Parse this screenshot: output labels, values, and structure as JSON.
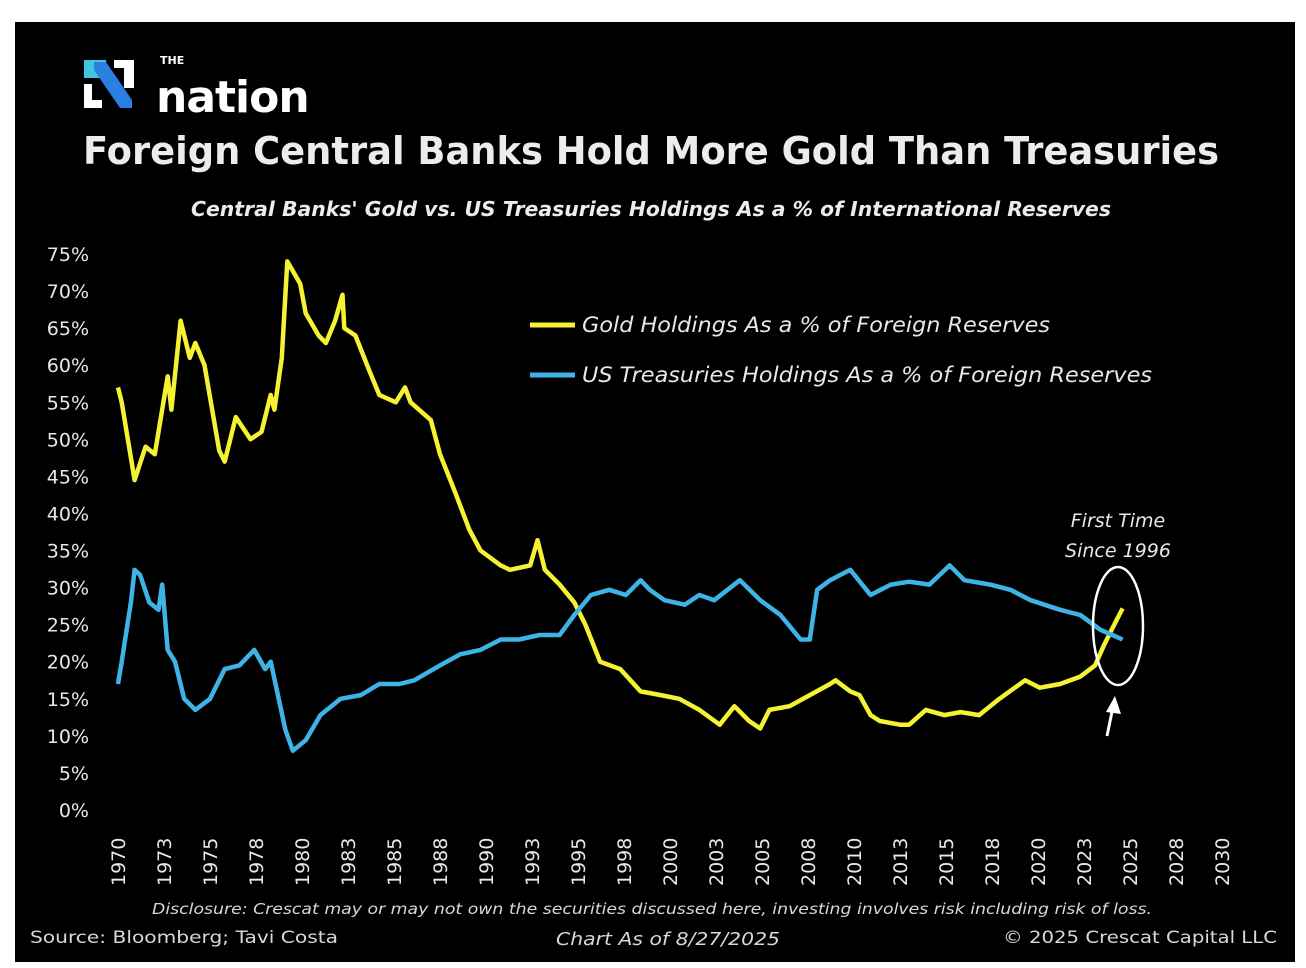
{
  "logo": {
    "small": "THE",
    "word": "nation",
    "colors": {
      "mark_top": "#3ec6e0",
      "mark_bottom": "#2a6fd6"
    }
  },
  "chart_data": {
    "type": "line",
    "title": "Foreign Central Banks Hold More Gold Than Treasuries",
    "subtitle": "Central Banks' Gold vs. US Treasuries Holdings As a % of International Reserves",
    "xlabel": "",
    "ylabel": "",
    "xlim": [
      1970,
      2030
    ],
    "ylim": [
      0,
      75
    ],
    "y_ticks": [
      0,
      5,
      10,
      15,
      20,
      25,
      30,
      35,
      40,
      45,
      50,
      55,
      60,
      65,
      70,
      75
    ],
    "y_tick_labels": [
      "0%",
      "5%",
      "10%",
      "15%",
      "20%",
      "25%",
      "30%",
      "35%",
      "40%",
      "45%",
      "50%",
      "55%",
      "60%",
      "65%",
      "70%",
      "75%"
    ],
    "x_tick_values": [
      1970,
      1972.5,
      1975,
      1977.5,
      1980,
      1982.5,
      1985,
      1987.5,
      1990,
      1992.5,
      1995,
      1997.5,
      2000,
      2002.5,
      2005,
      2007.5,
      2010,
      2012.5,
      2015,
      2017.5,
      2020,
      2022.5,
      2025,
      2027.5,
      2030
    ],
    "x_tick_labels": [
      "1970",
      "1973",
      "1975",
      "1978",
      "1980",
      "1983",
      "1985",
      "1988",
      "1990",
      "1993",
      "1995",
      "1998",
      "2000",
      "2003",
      "2005",
      "2008",
      "2010",
      "2013",
      "2015",
      "2018",
      "2020",
      "2023",
      "2025",
      "2028",
      "2030"
    ],
    "grid": false,
    "legend_position": "top-right",
    "series": [
      {
        "name": "Gold Holdings As a % of Foreign Reserves",
        "color": "#f5f234",
        "x": [
          1970.0,
          1970.2,
          1970.9,
          1971.5,
          1972.0,
          1972.7,
          1972.9,
          1973.4,
          1973.9,
          1974.2,
          1974.7,
          1975.5,
          1975.8,
          1976.4,
          1977.2,
          1977.8,
          1978.3,
          1978.5,
          1978.9,
          1979.2,
          1979.9,
          1980.2,
          1980.9,
          1981.3,
          1981.8,
          1982.2,
          1982.3,
          1982.9,
          1983.7,
          1984.2,
          1985.1,
          1985.6,
          1985.9,
          1987.0,
          1987.5,
          1988.3,
          1989.1,
          1989.7,
          1990.8,
          1991.3,
          1992.4,
          1992.8,
          1993.2,
          1994.0,
          1994.8,
          1995.4,
          1996.2,
          1997.3,
          1998.4,
          1999.5,
          2000.5,
          2001.6,
          2002.7,
          2003.5,
          2004.3,
          2004.9,
          2005.4,
          2006.5,
          2007.6,
          2008.7,
          2009.0,
          2009.8,
          2010.3,
          2010.9,
          2011.4,
          2012.5,
          2013.0,
          2013.9,
          2014.9,
          2015.8,
          2016.8,
          2017.9,
          2019.3,
          2020.1,
          2021.2,
          2022.3,
          2023.1,
          2023.6,
          2024.0,
          2024.6
        ],
        "y": [
          57,
          55,
          44.5,
          49,
          48,
          58.5,
          54,
          66,
          61,
          63,
          60,
          48.5,
          47,
          53,
          50,
          51,
          56,
          54,
          61,
          74,
          71,
          67,
          64,
          63,
          66,
          69.5,
          65,
          64,
          59,
          56,
          55,
          57,
          55,
          52.6,
          48,
          43,
          37.8,
          35,
          33,
          32.4,
          33,
          36.4,
          32.4,
          30.4,
          28,
          25,
          20,
          19,
          16,
          15.5,
          15,
          13.5,
          11.5,
          14,
          12,
          11,
          13.5,
          14,
          15.5,
          17,
          17.5,
          16,
          15.5,
          12.8,
          12,
          11.5,
          11.5,
          13.5,
          12.8,
          13.2,
          12.8,
          15,
          17.5,
          16.5,
          17,
          18,
          19.5,
          22.3,
          24.3,
          27.2
        ]
      },
      {
        "name": "US Treasuries Holdings As a % of Foreign Reserves",
        "color": "#3fb3e6",
        "x": [
          1970.0,
          1970.2,
          1970.7,
          1970.9,
          1971.2,
          1971.7,
          1972.2,
          1972.4,
          1972.7,
          1973.1,
          1973.6,
          1974.2,
          1975.0,
          1975.8,
          1976.6,
          1977.4,
          1978.0,
          1978.3,
          1979.1,
          1979.5,
          1980.2,
          1981.0,
          1982.1,
          1983.2,
          1984.2,
          1985.3,
          1986.1,
          1987.5,
          1988.6,
          1989.7,
          1990.8,
          1991.8,
          1992.9,
          1994.0,
          1994.8,
          1995.7,
          1996.7,
          1997.6,
          1998.4,
          1998.9,
          1999.7,
          2000.8,
          2001.6,
          2002.4,
          2003.8,
          2004.9,
          2006.0,
          2007.1,
          2007.6,
          2008.0,
          2008.7,
          2009.8,
          2010.9,
          2012.0,
          2013.0,
          2014.1,
          2015.2,
          2016.0,
          2017.4,
          2018.5,
          2019.6,
          2021.2,
          2022.3,
          2023.4,
          2024.6
        ],
        "y": [
          17,
          20,
          28,
          32.4,
          31.7,
          28,
          27,
          30.4,
          21.6,
          20,
          15,
          13.5,
          15,
          19,
          19.5,
          21.6,
          19,
          20,
          10.8,
          8,
          9.4,
          12.8,
          15,
          15.5,
          17,
          17,
          17.5,
          19.5,
          21,
          21.6,
          23,
          23,
          23.6,
          23.6,
          26.3,
          29,
          29.7,
          29,
          31,
          29.7,
          28.3,
          27.7,
          29,
          28.3,
          31,
          28.3,
          26.3,
          23,
          23,
          29.7,
          31,
          32.4,
          29,
          30.4,
          30.8,
          30.4,
          33,
          31,
          30.4,
          29.7,
          28.3,
          27,
          26.3,
          24.3,
          23
        ]
      }
    ],
    "annotations": [
      {
        "line1": "First Time",
        "line2": "Since 1996"
      }
    ]
  },
  "footer": {
    "disclosure": "Disclosure: Crescat may or may not own the securities discussed here, investing involves risk including risk of loss.",
    "source": "Source: Bloomberg; Tavi Costa",
    "chart_date": "Chart As of 8/27/2025",
    "copyright": "© 2025 Crescat Capital LLC"
  }
}
